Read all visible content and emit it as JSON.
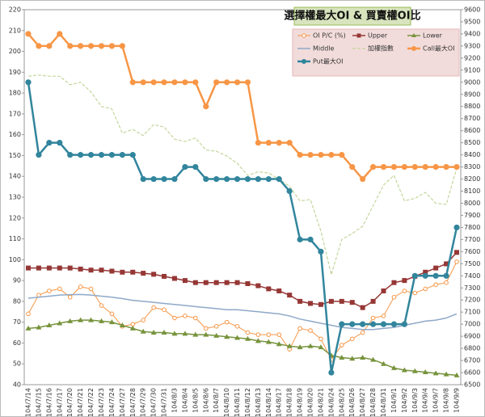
{
  "chart_data": {
    "type": "line",
    "title": "選擇權最大OI & 買賣權OI比",
    "categories": [
      "104/7/14",
      "104/7/15",
      "104/7/16",
      "104/7/17",
      "104/7/20",
      "104/7/21",
      "104/7/22",
      "104/7/23",
      "104/7/24",
      "104/7/27",
      "104/7/28",
      "104/7/29",
      "104/7/30",
      "104/7/31",
      "104/8/3",
      "104/8/4",
      "104/8/5",
      "104/8/6",
      "104/8/7",
      "104/8/10",
      "104/8/11",
      "104/8/12",
      "104/8/13",
      "104/8/14",
      "104/8/17",
      "104/8/18",
      "104/8/19",
      "104/8/20",
      "104/8/21",
      "104/8/24",
      "104/8/25",
      "104/8/26",
      "104/8/27",
      "104/8/28",
      "104/8/31",
      "104/9/1",
      "104/9/2",
      "104/9/3",
      "104/9/4",
      "104/9/7",
      "104/9/8",
      "104/9/9"
    ],
    "ylim": [
      40,
      220
    ],
    "yticks": [
      40,
      50,
      60,
      70,
      80,
      90,
      100,
      110,
      120,
      130,
      140,
      150,
      160,
      170,
      180,
      190,
      200,
      210,
      220
    ],
    "y2lim": [
      6500,
      9600
    ],
    "y2ticks": [
      6500,
      6600,
      6700,
      6800,
      6900,
      7000,
      7100,
      7200,
      7300,
      7400,
      7500,
      7600,
      7700,
      7800,
      7900,
      8000,
      8100,
      8200,
      8300,
      8400,
      8500,
      8600,
      8700,
      8800,
      8900,
      9000,
      9100,
      9200,
      9300,
      9400,
      9500,
      9600
    ],
    "grid": false,
    "legend": "top-right",
    "series": [
      {
        "name": "OI P/C (%)",
        "color": "#f79646",
        "marker": "hollow-circle",
        "width": 1,
        "axis": "y",
        "values": [
          74,
          83,
          85,
          86,
          82,
          87,
          86,
          78,
          74,
          68,
          69,
          71,
          77,
          76,
          72,
          73,
          72,
          67,
          68,
          70,
          68,
          65,
          64,
          64,
          64,
          57,
          67,
          66,
          62,
          52,
          59,
          62,
          65,
          72,
          73,
          82,
          85,
          84,
          86,
          88,
          89,
          99
        ]
      },
      {
        "name": "Upper",
        "color": "#953735",
        "marker": "square",
        "width": 1.5,
        "axis": "y",
        "values": [
          96,
          96,
          96,
          96,
          96,
          95.5,
          95,
          95,
          94.5,
          94,
          94,
          93.5,
          93,
          92,
          91,
          90,
          89,
          89,
          89,
          89,
          89,
          88.5,
          87.5,
          86,
          85,
          83,
          80,
          79,
          78.5,
          80,
          80,
          79.5,
          77,
          80,
          85,
          89,
          90,
          92,
          94,
          96,
          98,
          103.5
        ]
      },
      {
        "name": "Lower",
        "color": "#77933c",
        "marker": "triangle",
        "width": 1.5,
        "axis": "y",
        "values": [
          67,
          67.5,
          68.5,
          69.5,
          70.5,
          71,
          71,
          70.5,
          70,
          68.5,
          67,
          65.5,
          65,
          65,
          64.5,
          64.5,
          64,
          64,
          63.5,
          63,
          62.5,
          62,
          61,
          60.5,
          59.5,
          58.5,
          58,
          58.5,
          58,
          54,
          53,
          52.5,
          53,
          52,
          50,
          48,
          47,
          46.5,
          46,
          45.5,
          45,
          44.5
        ]
      },
      {
        "name": "Middle",
        "color": "#8ea9c8",
        "marker": "none",
        "width": 1.5,
        "axis": "y",
        "values": [
          81.5,
          82,
          82.5,
          83,
          83.2,
          83.3,
          83,
          82.5,
          82,
          81.3,
          80.5,
          80,
          79.5,
          79,
          78.5,
          78,
          77.5,
          77,
          76.5,
          76,
          76,
          75.5,
          75,
          74.5,
          74,
          73,
          71.5,
          70.5,
          69.5,
          68.5,
          67.5,
          67,
          66.5,
          66.5,
          67,
          67.5,
          68.5,
          69.5,
          70.5,
          71,
          72,
          74
        ]
      },
      {
        "name": "加權指數",
        "color": "#c3d69b",
        "marker": "none",
        "width": 1.2,
        "dash": true,
        "axis": "y2",
        "values": [
          9050,
          9060,
          9050,
          9050,
          8980,
          9000,
          8920,
          8800,
          8780,
          8580,
          8610,
          8560,
          8650,
          8630,
          8530,
          8510,
          8540,
          8440,
          8430,
          8390,
          8330,
          8230,
          8260,
          8250,
          8200,
          8140,
          8020,
          8030,
          7770,
          7410,
          7700,
          7750,
          7810,
          7980,
          8150,
          8230,
          8020,
          8040,
          8090,
          8000,
          7990,
          8290
        ]
      },
      {
        "name": "Call最大OI",
        "color": "#f79646",
        "marker": "circle",
        "width": 2.5,
        "axis": "y2",
        "values": [
          9400,
          9300,
          9300,
          9400,
          9300,
          9300,
          9300,
          9300,
          9300,
          9300,
          9000,
          9000,
          9000,
          9000,
          9000,
          9000,
          9000,
          8800,
          9000,
          9000,
          9000,
          9000,
          8500,
          8500,
          8500,
          8500,
          8400,
          8400,
          8400,
          8400,
          8400,
          8300,
          8200,
          8300,
          8300,
          8300,
          8300,
          8300,
          8300,
          8300,
          8300,
          8300
        ]
      },
      {
        "name": "Put最大OI",
        "color": "#31859c",
        "marker": "circle",
        "width": 2.5,
        "axis": "y2",
        "values": [
          9000,
          8400,
          8500,
          8500,
          8400,
          8400,
          8400,
          8400,
          8400,
          8400,
          8400,
          8200,
          8200,
          8200,
          8200,
          8300,
          8300,
          8200,
          8200,
          8200,
          8200,
          8200,
          8200,
          8200,
          8200,
          8100,
          7700,
          7700,
          7600,
          6600,
          7000,
          7000,
          7000,
          7000,
          7000,
          7000,
          7000,
          7400,
          7400,
          7400,
          7400,
          7800
        ]
      }
    ]
  }
}
